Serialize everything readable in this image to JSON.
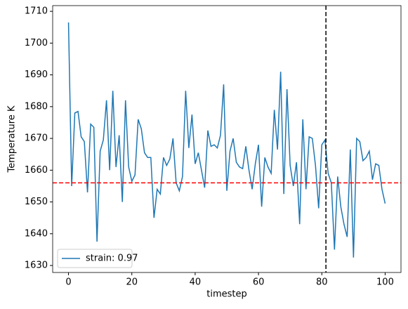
{
  "chart_data": {
    "type": "line",
    "xlabel": "timestep",
    "ylabel": "Temperature K",
    "x": [
      0,
      1,
      2,
      3,
      4,
      5,
      6,
      7,
      8,
      9,
      10,
      11,
      12,
      13,
      14,
      15,
      16,
      17,
      18,
      19,
      20,
      21,
      22,
      23,
      24,
      25,
      26,
      27,
      28,
      29,
      30,
      31,
      32,
      33,
      34,
      35,
      36,
      37,
      38,
      39,
      40,
      41,
      42,
      43,
      44,
      45,
      46,
      47,
      48,
      49,
      50,
      51,
      52,
      53,
      54,
      55,
      56,
      57,
      58,
      59,
      60,
      61,
      62,
      63,
      64,
      65,
      66,
      67,
      68,
      69,
      70,
      71,
      72,
      73,
      74,
      75,
      76,
      77,
      78,
      79,
      80,
      81,
      82,
      83,
      84,
      85,
      86,
      87,
      88,
      89,
      90,
      91,
      92,
      93,
      94,
      95,
      96,
      97,
      98,
      99,
      100
    ],
    "series": [
      {
        "name": "strain: 0.97",
        "color": "#1f77b4",
        "values": [
          1706.5,
          1655,
          1678,
          1678.5,
          1670.5,
          1669,
          1653,
          1674.5,
          1673.5,
          1637.5,
          1666,
          1669.5,
          1682,
          1660,
          1685,
          1661,
          1671,
          1650,
          1682,
          1661,
          1656.5,
          1658.5,
          1676,
          1673,
          1665.5,
          1664,
          1664,
          1645,
          1654,
          1652.5,
          1664,
          1661.5,
          1663.5,
          1670,
          1656,
          1653.5,
          1658,
          1685,
          1667,
          1677.5,
          1662,
          1665.5,
          1660,
          1654.5,
          1672.5,
          1667.5,
          1668,
          1667,
          1671,
          1687,
          1653.5,
          1666,
          1670,
          1662.5,
          1661,
          1660.5,
          1667.5,
          1660,
          1654,
          1662,
          1668,
          1648.5,
          1664,
          1661,
          1659,
          1679,
          1666.5,
          1691,
          1652.5,
          1685.5,
          1661.5,
          1655,
          1662.5,
          1643,
          1676,
          1654,
          1670.5,
          1670,
          1661.5,
          1648,
          1668,
          1669.5,
          1659,
          1656,
          1635,
          1658,
          1648.5,
          1643,
          1639,
          1666.5,
          1632.5,
          1670,
          1669,
          1663,
          1664,
          1666,
          1657,
          1662,
          1661.5,
          1654,
          1649.5
        ]
      }
    ],
    "reference_lines": [
      {
        "axis": "y",
        "value": 1656,
        "color": "#ff0000"
      },
      {
        "axis": "x",
        "value": 81.3,
        "color": "#000000"
      }
    ],
    "xlim": [
      -5,
      105
    ],
    "xticks": [
      0,
      20,
      40,
      60,
      80,
      100
    ],
    "ylim": [
      1627.8,
      1711.8
    ],
    "yticks": [
      1630,
      1640,
      1650,
      1660,
      1670,
      1680,
      1690,
      1700,
      1710
    ],
    "grid": false,
    "legend": "lower left"
  }
}
